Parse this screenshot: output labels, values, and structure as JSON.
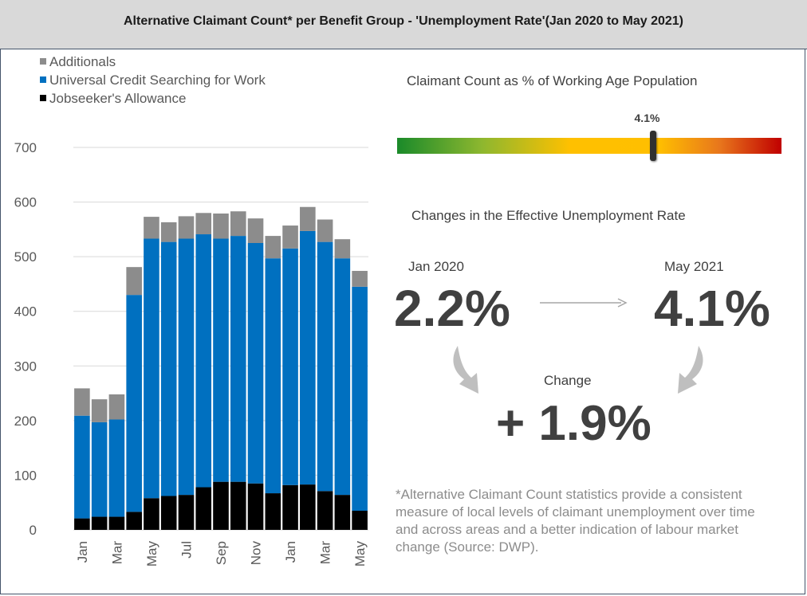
{
  "title": "Alternative Claimant Count* per Benefit Group - 'Unemployment Rate'(Jan 2020 to May 2021)",
  "chart_data": {
    "type": "bar",
    "stacked": true,
    "categories": [
      "Jan",
      "",
      "Mar",
      "",
      "May",
      "",
      "Jul",
      "",
      "Sep",
      "",
      "Nov",
      "",
      "Jan",
      "",
      "Mar",
      "",
      "May"
    ],
    "series": [
      {
        "name": "Jobseeker's Allowance",
        "color": "#000000",
        "values": [
          21,
          24,
          24,
          33,
          58,
          62,
          64,
          78,
          88,
          88,
          85,
          67,
          82,
          83,
          71,
          64,
          35
        ]
      },
      {
        "name": "Universal Credit Searching for Work",
        "color": "#0070c0",
        "values": [
          188,
          173,
          178,
          397,
          475,
          465,
          469,
          463,
          445,
          450,
          440,
          430,
          433,
          464,
          456,
          433,
          410
        ]
      },
      {
        "name": "Additionals",
        "color": "#8c8c8c",
        "values": [
          50,
          42,
          46,
          51,
          40,
          36,
          41,
          39,
          46,
          45,
          45,
          41,
          42,
          44,
          41,
          35,
          29
        ]
      }
    ],
    "legend_order": [
      "Additionals",
      "Universal Credit Searching for Work",
      "Jobseeker's Allowance"
    ],
    "legend_position": "top-left",
    "ylim": [
      0,
      700
    ],
    "yticks": [
      "0",
      "100",
      "200",
      "300",
      "400",
      "500",
      "600",
      "700"
    ],
    "grid": true
  },
  "gauge": {
    "label": "Claimant Count as % of Working Age Population",
    "value_label": "4.1%",
    "value_fraction": 0.665
  },
  "changes": {
    "title": "Changes in the Effective Unemployment Rate",
    "start_label": "Jan 2020",
    "start_value": "2.2%",
    "end_label": "May 2021",
    "end_value": "4.1%",
    "change_label": "Change",
    "change_value": "+ 1.9%"
  },
  "footnote": "*Alternative Claimant Count statistics provide a consistent measure of local levels of claimant unemployment over time and across areas and a better indication of labour market change (Source: DWP).",
  "colors": {
    "header_bg": "#d9d9d9",
    "border": "#44546a",
    "text": "#404040",
    "arrow": "#bfbfbf"
  }
}
